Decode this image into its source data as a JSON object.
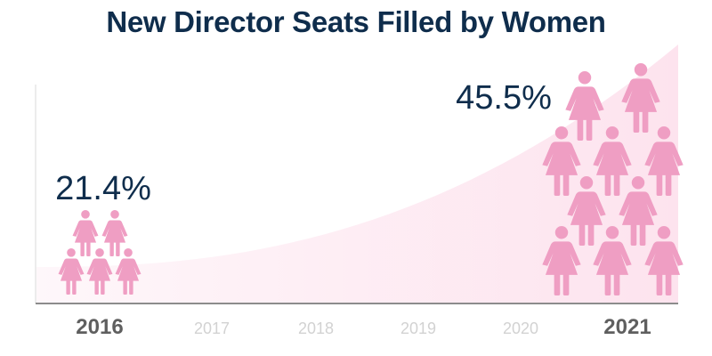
{
  "chart_data": {
    "type": "pictogram",
    "title": "New Director Seats Filled by Women",
    "categories": [
      "2016",
      "2017",
      "2018",
      "2019",
      "2020",
      "2021"
    ],
    "highlighted": [
      "2016",
      "2021"
    ],
    "points": [
      {
        "x": "2016",
        "value": 21.4,
        "label": "21.4%",
        "icon_count": 5
      },
      {
        "x": "2021",
        "value": 45.5,
        "label": "45.5%",
        "icon_count": 11
      }
    ],
    "unit": "%",
    "grid": false
  },
  "colors": {
    "title": "#0f2d4c",
    "icon": "#ef9ec3",
    "area": "#fde6ef",
    "axis": "#8c8c8c",
    "tick_major": "#5f5f5f",
    "tick_minor": "#d2d2d2"
  },
  "icon": "woman-icon"
}
